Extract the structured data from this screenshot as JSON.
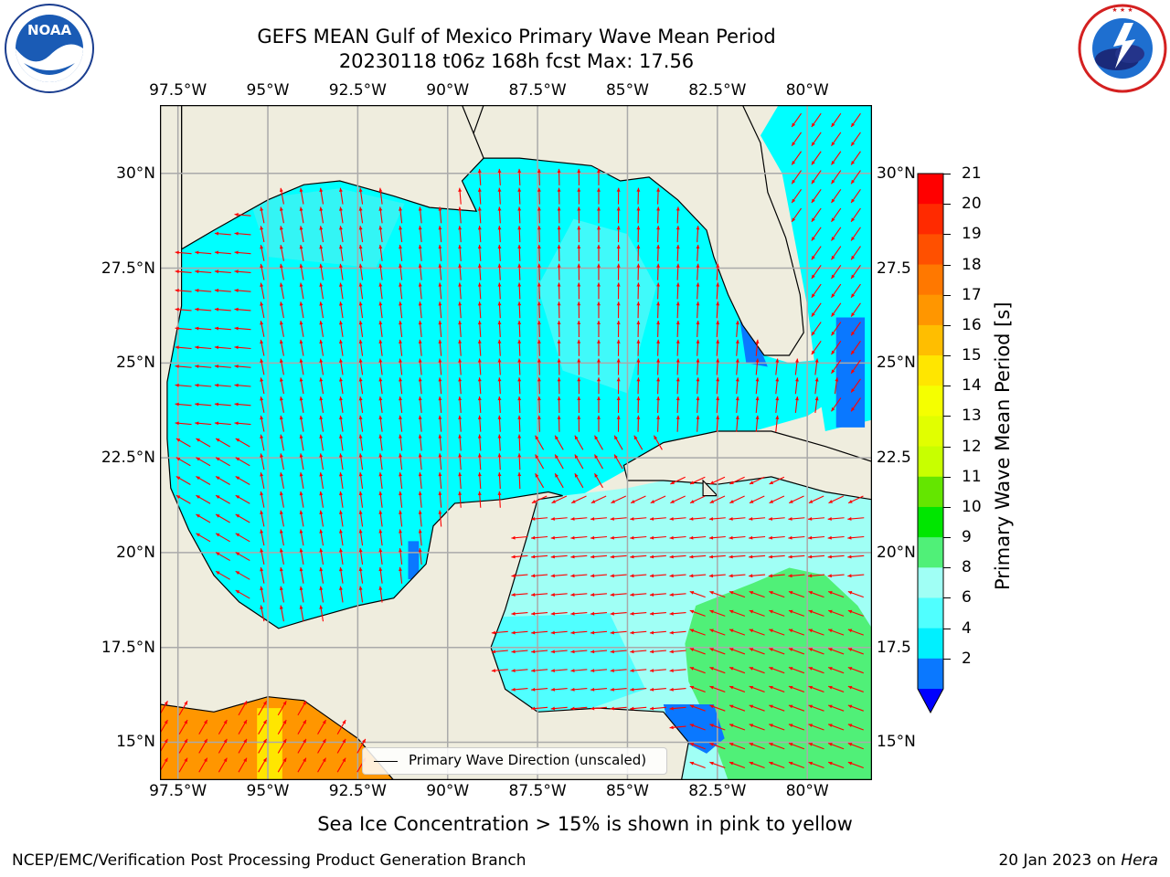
{
  "header": {
    "title_line1": "GEFS MEAN Gulf of Mexico Primary Wave Mean Period",
    "title_line2": "20230118 t06z 168h fcst   Max: 17.56"
  },
  "logos": {
    "left": {
      "name": "noaa-logo",
      "text": "NOAA",
      "ring_text": "NATIONAL OCEANIC AND ATMOSPHERIC ADMINISTRATION · U.S. DEPARTMENT OF COMMERCE"
    },
    "right": {
      "name": "nws-logo",
      "ring_text": "NATIONAL WEATHER SERVICE"
    }
  },
  "map": {
    "lon_ticks": [
      "97.5°W",
      "95°W",
      "92.5°W",
      "90°W",
      "87.5°W",
      "85°W",
      "82.5°W",
      "80°W"
    ],
    "lat_ticks_left": [
      "30°N",
      "27.5°N",
      "25°N",
      "22.5°N",
      "20°N",
      "17.5°N",
      "15°N"
    ],
    "lat_ticks_right": [
      "30°N",
      "27.5",
      "25°N",
      "22.5",
      "20°N",
      "17.5",
      "15°N"
    ],
    "extent": {
      "lon_min": -98,
      "lon_max": -78.2,
      "lat_min": 14,
      "lat_max": 31.8
    },
    "colors": {
      "land": "#efedde",
      "grid": "#aaaaaa",
      "arrow": "#ff0000",
      "coast": "#000000"
    },
    "legend_label": "Primary Wave Direction (unscaled)"
  },
  "colorbar": {
    "label": "Primary Wave Mean Period [s]",
    "ticks": [
      "21",
      "20",
      "19",
      "18",
      "17",
      "16",
      "15",
      "14",
      "13",
      "12",
      "11",
      "10",
      "9",
      "8",
      "6",
      "4",
      "2"
    ],
    "colors": [
      "#ff0000",
      "#ff2a00",
      "#ff5000",
      "#ff7800",
      "#ff9600",
      "#ffbe00",
      "#ffe600",
      "#f5ff00",
      "#e1ff00",
      "#c8ff00",
      "#64e600",
      "#00e600",
      "#50f078",
      "#a0fff5",
      "#50ffff",
      "#00f0ff",
      "#0a78ff"
    ],
    "extend_color": "#0000ff"
  },
  "notes": {
    "sea_ice": "Sea Ice Concentration > 15% is shown in pink to yellow",
    "footer_left": "NCEP/EMC/Verification Post Processing Product Generation Branch",
    "footer_date": "20 Jan 2023 on ",
    "footer_host": "Hera"
  }
}
